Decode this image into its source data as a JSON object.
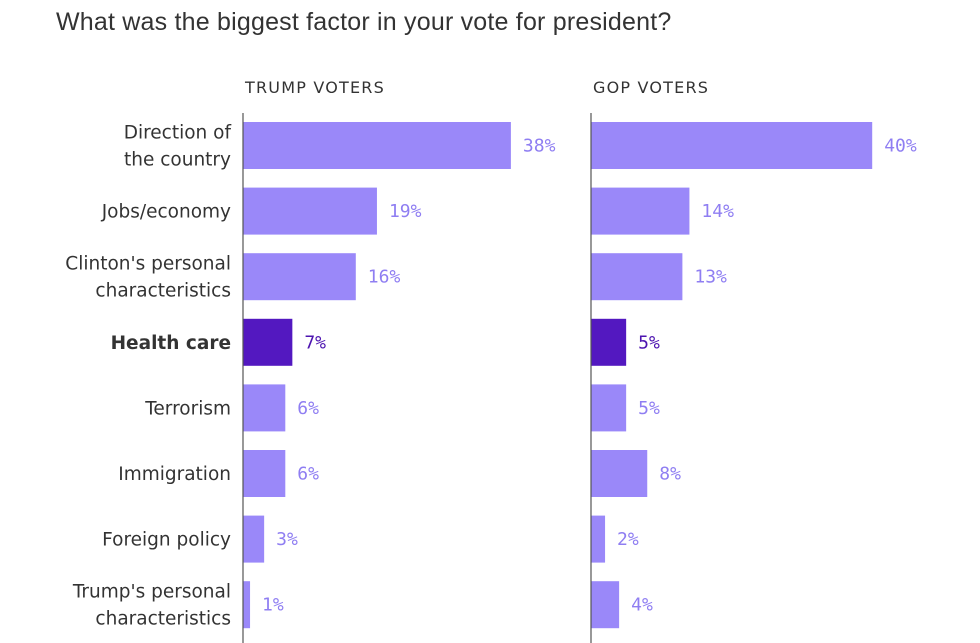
{
  "chart_data": {
    "type": "bar",
    "orientation": "horizontal",
    "title": "What was the biggest factor in your vote for president?",
    "categories": [
      "Direction of the country",
      "Jobs/economy",
      "Clinton's personal characteristics",
      "Health care",
      "Terrorism",
      "Immigration",
      "Foreign policy",
      "Trump's personal characteristics"
    ],
    "category_lines": [
      [
        "Direction of",
        "the country"
      ],
      [
        "Jobs/economy"
      ],
      [
        "Clinton's personal",
        "characteristics"
      ],
      [
        "Health care"
      ],
      [
        "Terrorism"
      ],
      [
        "Immigration"
      ],
      [
        "Foreign policy"
      ],
      [
        "Trump's personal",
        "characteristics"
      ]
    ],
    "highlight_category": "Health care",
    "value_suffix": "%",
    "xlim": [
      0,
      40
    ],
    "series": [
      {
        "name": "TRUMP VOTERS",
        "values": [
          38,
          19,
          16,
          7,
          6,
          6,
          3,
          1
        ]
      },
      {
        "name": "GOP VOTERS",
        "values": [
          40,
          14,
          13,
          5,
          5,
          8,
          2,
          4
        ]
      }
    ],
    "colors": {
      "bar": "#9a88f9",
      "bar_highlight": "#5318c0",
      "value_label": "#8f7ef2",
      "value_label_highlight": "#4d14b0",
      "axis": "#555555"
    },
    "grid": false,
    "legend": "none"
  }
}
